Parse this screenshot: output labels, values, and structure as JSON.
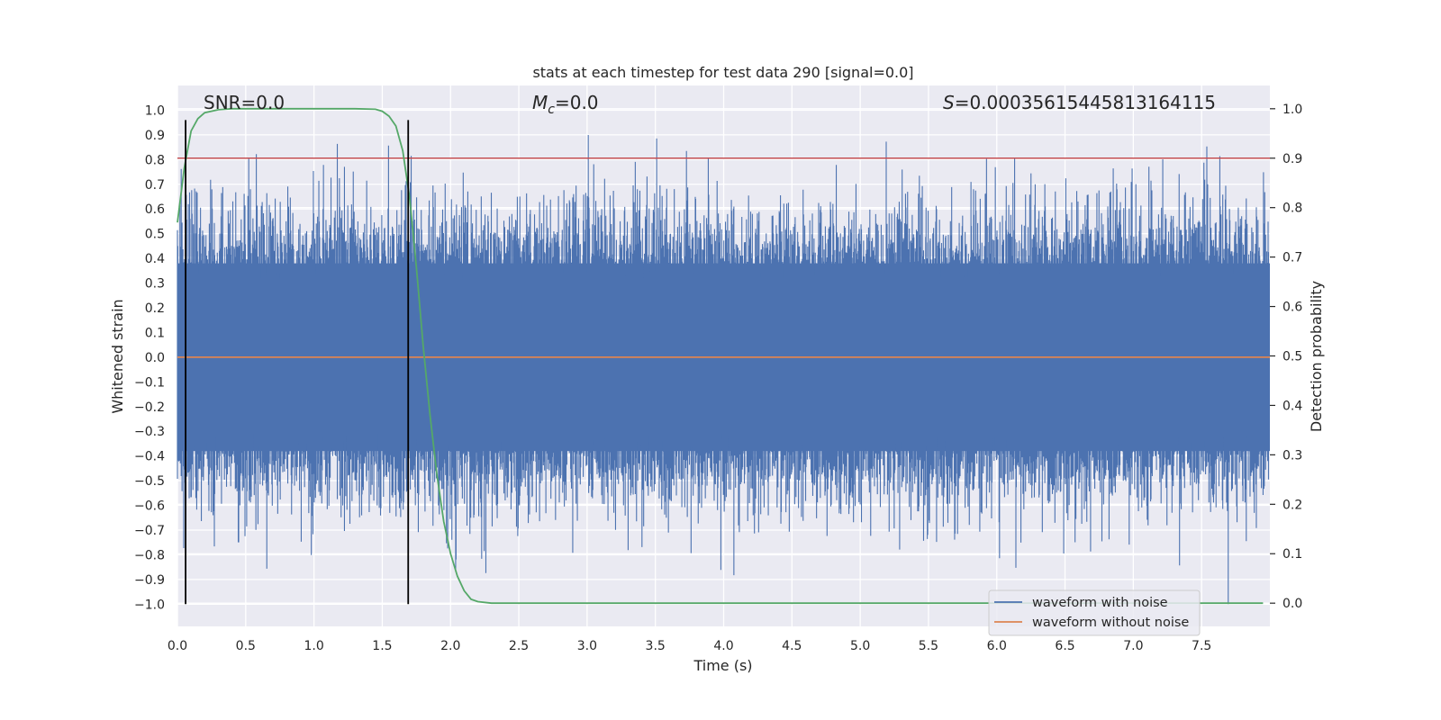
{
  "chart_data": {
    "type": "line",
    "title": "stats at each timestep for test data 290 [signal=0.0]",
    "xlabel": "Time (s)",
    "ylabel": "Whitened strain",
    "y2label": "Detection probability",
    "xlim": [
      0.0,
      8.0
    ],
    "ylim": [
      -1.09,
      1.1
    ],
    "y2lim": [
      -0.047,
      1.047
    ],
    "x_ticks": [
      "0.0",
      "0.5",
      "1.0",
      "1.5",
      "2.0",
      "2.5",
      "3.0",
      "3.5",
      "4.0",
      "4.5",
      "5.0",
      "5.5",
      "6.0",
      "6.5",
      "7.0",
      "7.5"
    ],
    "y_ticks": [
      "1.0",
      "0.9",
      "0.8",
      "0.7",
      "0.6",
      "0.5",
      "0.4",
      "0.3",
      "0.2",
      "0.1",
      "0.0",
      "−0.1",
      "−0.2",
      "−0.3",
      "−0.4",
      "−0.5",
      "−0.6",
      "−0.7",
      "−0.8",
      "−0.9",
      "−1.0"
    ],
    "y2_ticks": [
      "1.0",
      "0.9",
      "0.8",
      "0.7",
      "0.6",
      "0.5",
      "0.4",
      "0.3",
      "0.2",
      "0.1",
      "0.0"
    ],
    "annotations": {
      "snr": "SNR=0.0",
      "mc_symbol": "M",
      "mc_sub": "c",
      "mc_value": "=0.0",
      "s_symbol": "S",
      "s_value": "=0.00035615445813164115"
    },
    "series": [
      {
        "name": "waveform with noise",
        "color": "#4c72b0",
        "kind": "noise",
        "envelope": [
          -0.6,
          0.6
        ]
      },
      {
        "name": "waveform without noise",
        "color": "#dd8452",
        "values_constant": 0.0
      }
    ],
    "detection_probability": {
      "color": "#55a868",
      "x": [
        0.0,
        0.05,
        0.1,
        0.15,
        0.2,
        0.3,
        0.4,
        0.5,
        0.8,
        1.0,
        1.3,
        1.45,
        1.5,
        1.55,
        1.6,
        1.65,
        1.7,
        1.75,
        1.8,
        1.85,
        1.9,
        1.95,
        2.0,
        2.05,
        2.1,
        2.15,
        2.2,
        2.3,
        2.5,
        3.0,
        7.95
      ],
      "y": [
        0.77,
        0.88,
        0.955,
        0.98,
        0.992,
        0.998,
        1.0,
        1.0,
        1.0,
        1.0,
        1.0,
        0.999,
        0.995,
        0.985,
        0.965,
        0.915,
        0.82,
        0.68,
        0.52,
        0.38,
        0.26,
        0.165,
        0.1,
        0.055,
        0.025,
        0.008,
        0.003,
        0.0,
        0.0,
        0.0,
        0.0
      ]
    },
    "threshold": {
      "value": 0.9,
      "color": "#c44e52"
    },
    "event_markers": {
      "x": [
        0.06,
        1.69
      ],
      "y_range": [
        -1.0,
        0.96
      ],
      "color": "#000000"
    },
    "legend": {
      "placement": "lower-right",
      "entries": [
        "waveform with noise",
        "waveform without noise"
      ]
    }
  }
}
